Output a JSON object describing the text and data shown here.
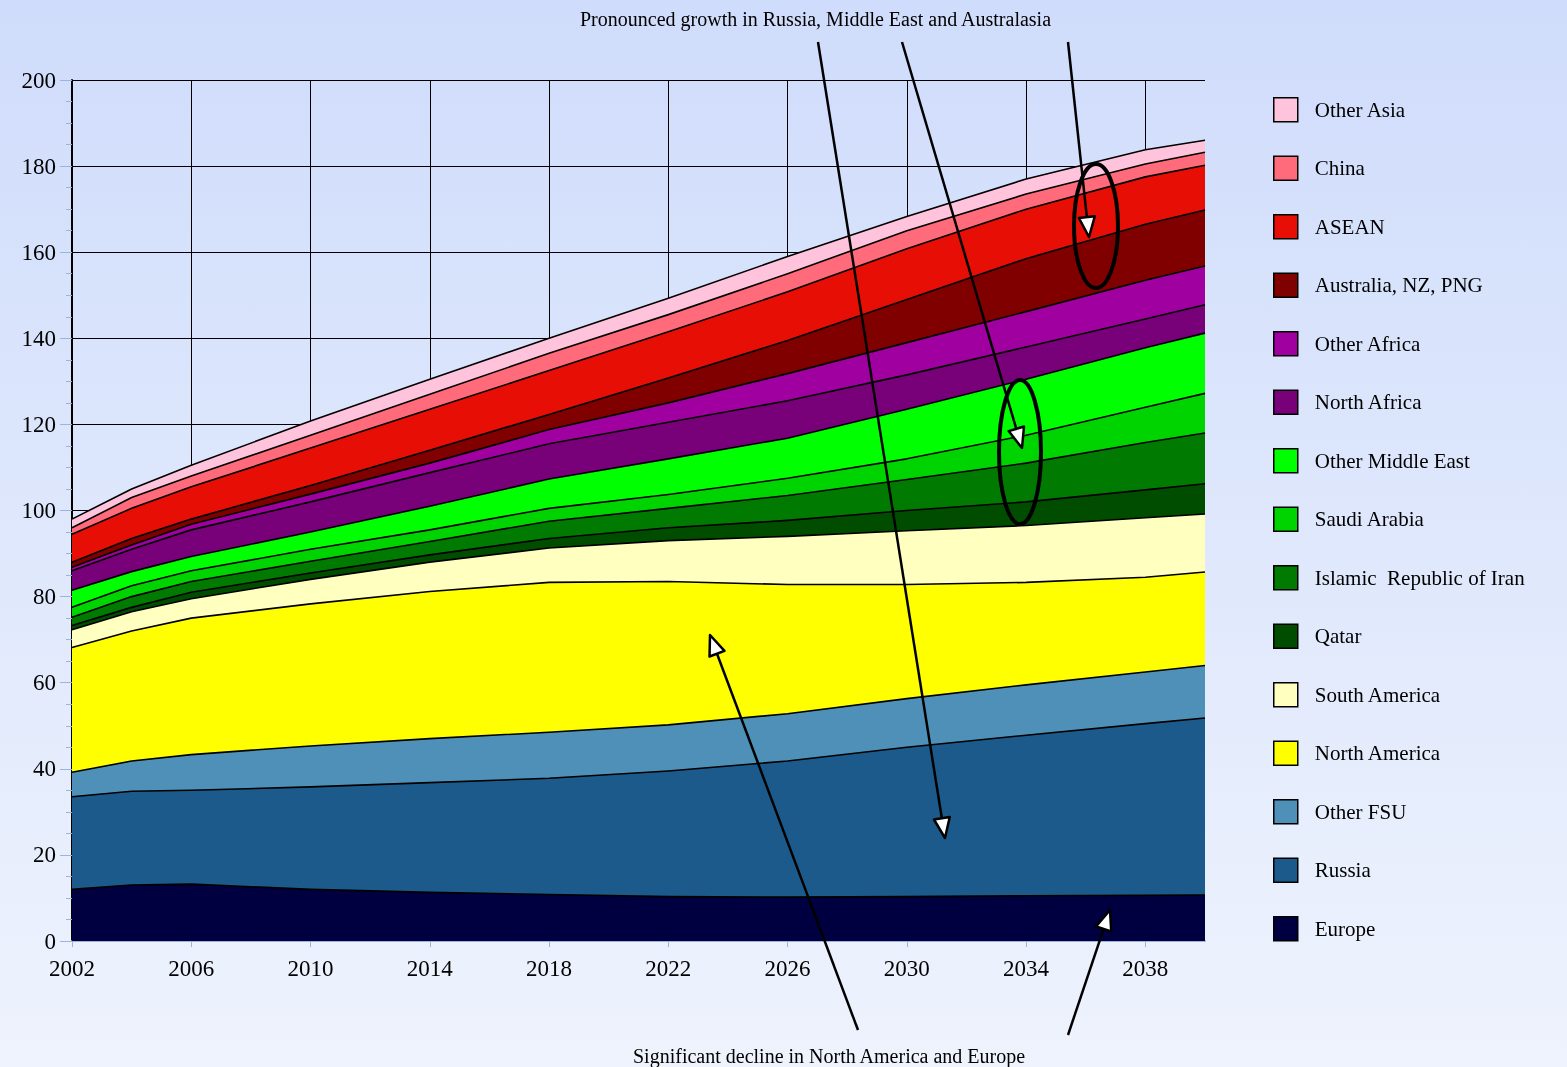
{
  "chart_data": {
    "type": "area",
    "stacked": true,
    "x": [
      2002,
      2004,
      2006,
      2010,
      2014,
      2018,
      2022,
      2026,
      2030,
      2034,
      2038,
      2040
    ],
    "xlim": [
      2002,
      2040
    ],
    "xticks": [
      2002,
      2006,
      2010,
      2014,
      2018,
      2022,
      2026,
      2030,
      2034,
      2038
    ],
    "ylim": [
      0,
      200
    ],
    "yticks": [
      0,
      {
        "value": 5,
        "label": null
      },
      {
        "value": 10,
        "label": null
      },
      {
        "value": 15,
        "label": null
      },
      20,
      {
        "value": 25,
        "label": null
      },
      {
        "value": 30,
        "label": null
      },
      {
        "value": 35,
        "label": null
      },
      40,
      {
        "value": 45,
        "label": null
      },
      {
        "value": 50,
        "label": null
      },
      {
        "value": 55,
        "label": null
      },
      60,
      {
        "value": 65,
        "label": null
      },
      {
        "value": 70,
        "label": null
      },
      {
        "value": 75,
        "label": null
      },
      80,
      {
        "value": 85,
        "label": null
      },
      {
        "value": 90,
        "label": null
      },
      {
        "value": 95,
        "label": null
      },
      100,
      {
        "value": 105,
        "label": null
      },
      {
        "value": 110,
        "label": null
      },
      {
        "value": 115,
        "label": null
      },
      120,
      {
        "value": 125,
        "label": null
      },
      {
        "value": 130,
        "label": null
      },
      {
        "value": 135,
        "label": null
      },
      140,
      {
        "value": 145,
        "label": null
      },
      {
        "value": 150,
        "label": null
      },
      {
        "value": 155,
        "label": null
      },
      160,
      {
        "value": 165,
        "label": null
      },
      {
        "value": 170,
        "label": null
      },
      {
        "value": 175,
        "label": null
      },
      180,
      {
        "value": 185,
        "label": null
      },
      {
        "value": 190,
        "label": null
      },
      {
        "value": 195,
        "label": null
      },
      200
    ],
    "grid": true,
    "legend": "right",
    "annotations": [
      "Pronounced growth in Russia, Middle East and Australasia",
      "Significant decline in North America and Europe"
    ],
    "series": [
      {
        "name": "Europe",
        "color": "#000040",
        "values": [
          12,
          13,
          13.2,
          12,
          11.3,
          10.8,
          10.3,
          10.2,
          10.3,
          10.5,
          10.6,
          10.7
        ]
      },
      {
        "name": "Russia",
        "color": "#1b5a8a",
        "values": [
          21.5,
          21.8,
          21.8,
          23.8,
          25.5,
          27,
          29.2,
          31.6,
          34.7,
          37.3,
          39.9,
          41.1
        ]
      },
      {
        "name": "Other FSU",
        "color": "#4f90b8",
        "values": [
          5.7,
          7,
          8.3,
          9.5,
          10.2,
          10.7,
          10.7,
          11,
          11.3,
          11.7,
          12,
          12.2
        ]
      },
      {
        "name": "North America",
        "color": "#ffff00",
        "values": [
          29,
          30.2,
          31.7,
          33,
          34.2,
          34.8,
          33.3,
          30,
          26.5,
          23.8,
          22,
          21.7
        ]
      },
      {
        "name": "South America",
        "color": "#ffffc0",
        "values": [
          4.1,
          4.5,
          4.5,
          5.7,
          6.8,
          8,
          9.5,
          11.2,
          12.5,
          13.2,
          13.8,
          13.5
        ]
      },
      {
        "name": "Qatar",
        "color": "#004d00",
        "values": [
          1,
          1,
          1.5,
          1.5,
          1.7,
          2.2,
          3,
          3.7,
          4.7,
          5.5,
          6.5,
          7
        ]
      },
      {
        "name": "Islamic  Republic of Iran",
        "color": "#007a00",
        "values": [
          1.9,
          2.5,
          2.5,
          2.7,
          3.1,
          4,
          4.5,
          5.8,
          7.2,
          9,
          11,
          11.8
        ]
      },
      {
        "name": "Saudi Arabia",
        "color": "#00d400",
        "values": [
          2.3,
          2.5,
          2.5,
          2.8,
          2.7,
          3,
          3.2,
          4,
          4.8,
          6.5,
          8.2,
          9.2
        ]
      },
      {
        "name": "Other Middle East",
        "color": "#00ff00",
        "values": [
          4,
          3.3,
          3.3,
          4,
          5.5,
          6.8,
          8.3,
          9.3,
          11.5,
          13,
          13.8,
          14
        ]
      },
      {
        "name": "North Africa",
        "color": "#780078",
        "values": [
          4.5,
          5.2,
          6.2,
          7,
          7.8,
          8.2,
          8.5,
          8.7,
          8,
          7.5,
          6.7,
          6.6
        ]
      },
      {
        "name": "Other Africa",
        "color": "#a000a0",
        "values": [
          0.8,
          1,
          1.3,
          1.8,
          2.2,
          3.3,
          4.5,
          6.3,
          7.5,
          8.2,
          9,
          9
        ]
      },
      {
        "name": "Australia, NZ, PNG",
        "color": "#800000",
        "values": [
          1.2,
          1.5,
          1.2,
          2,
          3,
          3.5,
          5.8,
          7.7,
          10,
          12.3,
          13,
          13
        ]
      },
      {
        "name": "ASEAN",
        "color": "#e60e05",
        "values": [
          6.5,
          7,
          7.5,
          8.7,
          9.5,
          10.2,
          10.7,
          11.3,
          11.8,
          11.5,
          11,
          10.4
        ]
      },
      {
        "name": "China",
        "color": "#ff6b7a",
        "values": [
          1.5,
          2.5,
          2.5,
          3,
          3.5,
          4,
          4,
          4.2,
          4.2,
          3.5,
          3,
          3
        ]
      },
      {
        "name": "Other Asia",
        "color": "#ffc4dc",
        "values": [
          2,
          2,
          2.5,
          3.3,
          3.5,
          3.5,
          3.8,
          4,
          3.3,
          3.5,
          3.3,
          2.8
        ]
      }
    ]
  }
}
